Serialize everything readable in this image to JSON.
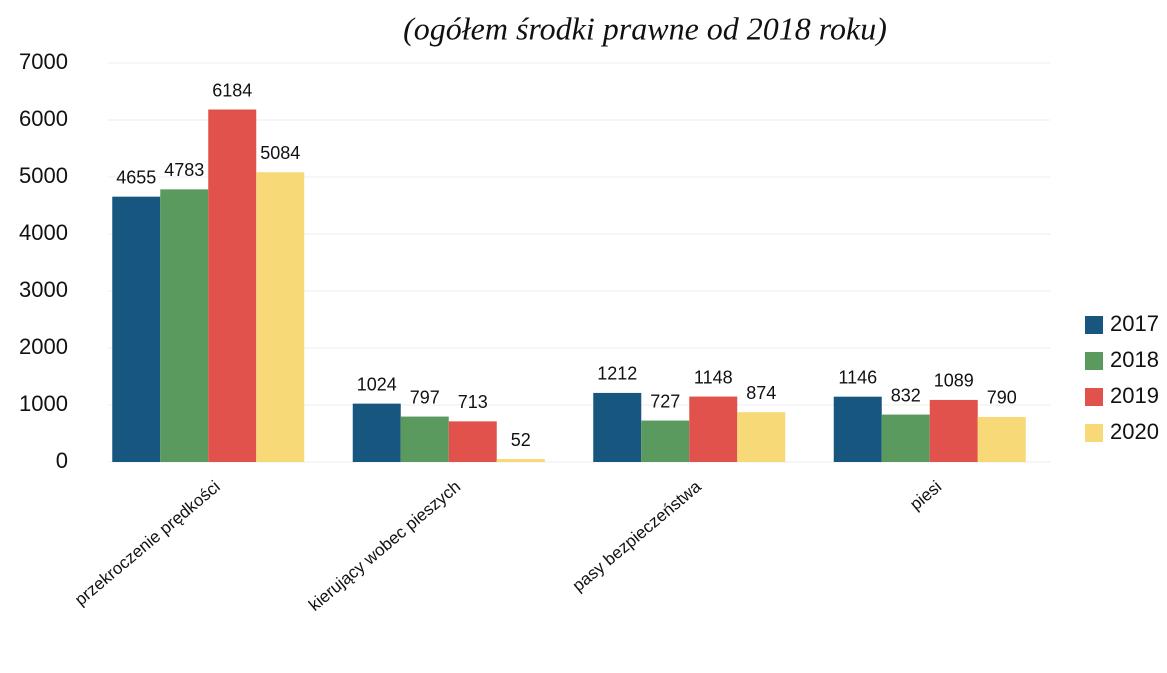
{
  "chart_data": {
    "type": "bar",
    "title": "(ogółem środki prawne od 2018 roku)",
    "categories": [
      "przekroczenie prędkości",
      "kierujący wobec pieszych",
      "pasy bezpieczeństwa",
      "piesi"
    ],
    "series": [
      {
        "name": "2017",
        "color": "#17567f",
        "values": [
          4655,
          1024,
          1212,
          1146
        ]
      },
      {
        "name": "2018",
        "color": "#5b9a5f",
        "values": [
          4783,
          797,
          727,
          832
        ]
      },
      {
        "name": "2019",
        "color": "#e0524b",
        "values": [
          6184,
          713,
          1148,
          1089
        ]
      },
      {
        "name": "2020",
        "color": "#f7d977",
        "values": [
          5084,
          52,
          874,
          790
        ]
      }
    ],
    "ylim": [
      0,
      7000
    ],
    "yticks": [
      0,
      1000,
      2000,
      3000,
      4000,
      5000,
      6000,
      7000
    ],
    "grid": true,
    "legend": "right"
  }
}
